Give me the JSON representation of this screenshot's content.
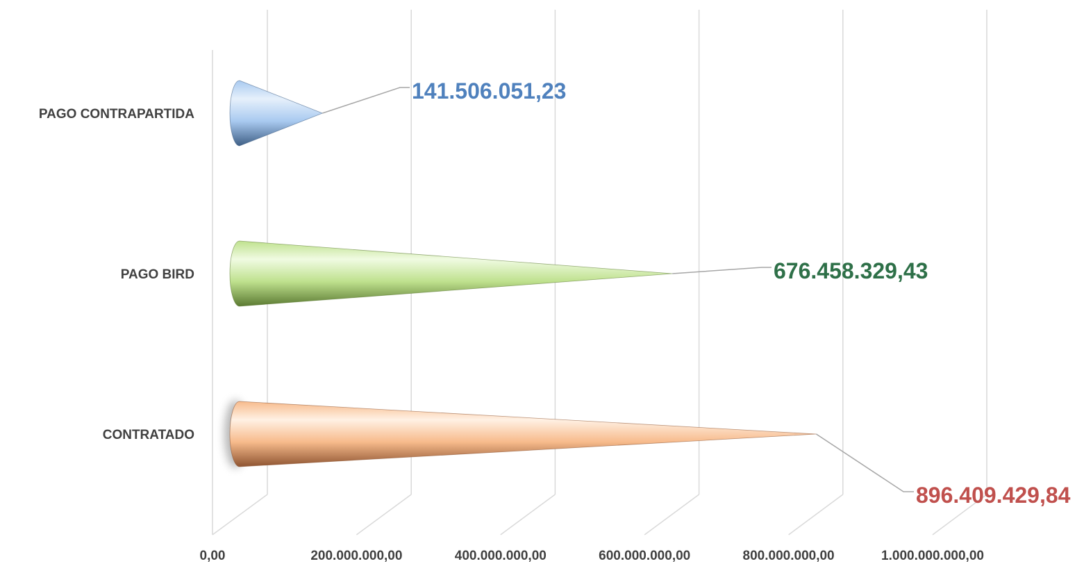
{
  "chart_data": {
    "type": "bar",
    "orientation": "horizontal",
    "style": "3d-cone",
    "categories": [
      "PAGO CONTRAPARTIDA",
      "PAGO BIRD",
      "CONTRATADO"
    ],
    "values": [
      141506051.23,
      676458329.43,
      896409429.84
    ],
    "data_labels": [
      "141.506.051,23",
      "676.458.329,43",
      "896.409.429,84"
    ],
    "xticks": [
      "0,00",
      "200.000.000,00",
      "400.000.000,00",
      "600.000.000,00",
      "800.000.000,00",
      "1.000.000.000,00"
    ],
    "xlim": [
      0,
      1000000000
    ],
    "grid": true,
    "legend": "none",
    "colors": {
      "PAGO CONTRAPARTIDA": {
        "light": "#e6f0fb",
        "mid": "#a9caf0",
        "dark": "#3f5f86",
        "label": "#4f81bd"
      },
      "PAGO BIRD": {
        "light": "#f0fbe2",
        "mid": "#bfe18e",
        "dark": "#5b7a32",
        "label": "#2e7048"
      },
      "CONTRATADO": {
        "light": "#fff1e4",
        "mid": "#f7bb8c",
        "dark": "#8e5431",
        "label": "#c0504d"
      }
    }
  }
}
